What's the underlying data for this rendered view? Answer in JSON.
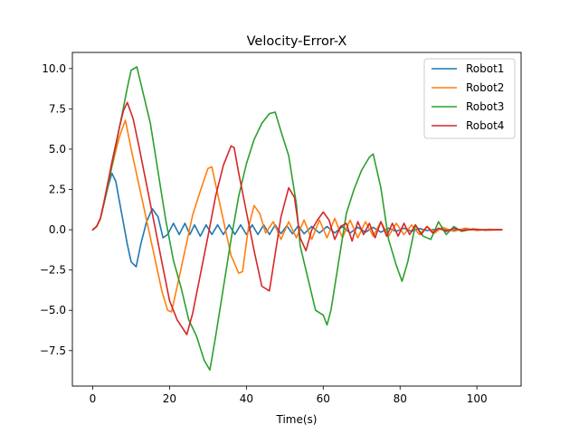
{
  "chart_data": {
    "type": "line",
    "title": "Velocity-Error-X",
    "xlabel": "Time(s)",
    "ylabel": "",
    "xlim": [
      -5.3,
      111.5
    ],
    "ylim": [
      -9.7,
      11.0
    ],
    "xticks": [
      0,
      20,
      40,
      60,
      80,
      100
    ],
    "yticks": [
      -7.5,
      -5.0,
      -2.5,
      0.0,
      2.5,
      5.0,
      7.5,
      10.0
    ],
    "ytick_labels": [
      "−7.5",
      "−5.0",
      "−2.5",
      "0.0",
      "2.5",
      "5.0",
      "7.5",
      "10.0"
    ],
    "grid": false,
    "legend_position": "top-right",
    "series": [
      {
        "name": "Robot1",
        "color": "#1f77b4",
        "x": [
          0,
          1,
          2,
          3,
          4,
          5,
          6,
          7,
          8,
          9,
          10,
          11.3,
          12.5,
          14,
          15.5,
          17,
          18.3,
          19.5,
          21,
          22.5,
          24,
          25.3,
          26.5,
          28,
          29.5,
          31,
          32.5,
          34,
          35.5,
          37,
          38.5,
          40,
          41.5,
          43,
          44.5,
          46,
          47.5,
          49,
          50.5,
          52,
          53.5,
          55,
          57,
          59,
          61,
          63,
          65,
          67,
          69,
          71,
          73,
          75,
          77,
          79,
          81,
          83,
          85,
          87,
          90,
          93,
          96,
          100,
          103,
          106.5
        ],
        "y": [
          0,
          0.2,
          0.7,
          1.7,
          2.7,
          3.5,
          3.0,
          1.7,
          0.4,
          -0.9,
          -2.0,
          -2.3,
          -0.9,
          0.5,
          1.3,
          0.8,
          -0.5,
          -0.3,
          0.4,
          -0.3,
          0.4,
          -0.3,
          0.3,
          -0.4,
          0.3,
          -0.3,
          0.3,
          -0.3,
          0.3,
          -0.3,
          0.3,
          -0.3,
          0.3,
          -0.3,
          0.3,
          -0.3,
          0.3,
          -0.25,
          0.25,
          -0.25,
          0.25,
          -0.25,
          0.2,
          -0.2,
          0.2,
          -0.2,
          0.2,
          -0.2,
          0.15,
          -0.15,
          0.15,
          -0.15,
          0.1,
          -0.1,
          0.1,
          -0.1,
          0.08,
          -0.05,
          0.05,
          -0.05,
          0.03,
          -0.02,
          0.02,
          0.0
        ]
      },
      {
        "name": "Robot2",
        "color": "#ff7f0e",
        "x": [
          0,
          1,
          2,
          3,
          4,
          5,
          6,
          7,
          8.5,
          10,
          12,
          14,
          16,
          18,
          19.5,
          20.5,
          22,
          24,
          26,
          28,
          30,
          31,
          32,
          34,
          36,
          38,
          39,
          40.5,
          42,
          43.5,
          45,
          47,
          49,
          51,
          53,
          55,
          57,
          59,
          61,
          63,
          65,
          67,
          69,
          71,
          73,
          75,
          77,
          79,
          81,
          83,
          85,
          87,
          89,
          91,
          94,
          97,
          100,
          103,
          106.5
        ],
        "y": [
          0,
          0.2,
          0.7,
          1.7,
          2.8,
          3.9,
          4.9,
          5.8,
          6.8,
          5.0,
          2.8,
          0.6,
          -1.6,
          -3.8,
          -5.0,
          -5.1,
          -3.5,
          -1.3,
          0.9,
          2.4,
          3.8,
          3.9,
          2.8,
          0.6,
          -1.6,
          -2.7,
          -2.6,
          0.1,
          1.5,
          1.0,
          -0.2,
          0.5,
          -0.6,
          0.5,
          -0.5,
          0.6,
          -0.6,
          0.6,
          -0.5,
          0.7,
          -0.5,
          0.6,
          -0.5,
          0.5,
          -0.4,
          0.5,
          -0.4,
          0.4,
          -0.3,
          0.3,
          -0.3,
          0.2,
          -0.2,
          0.15,
          -0.1,
          0.1,
          -0.05,
          0.03,
          0.0
        ]
      },
      {
        "name": "Robot3",
        "color": "#2ca02c",
        "x": [
          0,
          1,
          2,
          3,
          4,
          5,
          6,
          7,
          8,
          9,
          10,
          11.5,
          13,
          15,
          17,
          19,
          21,
          23,
          25,
          27,
          29,
          30.5,
          32,
          34,
          36,
          38,
          40,
          42,
          44,
          46,
          47.5,
          49,
          51,
          53,
          54,
          56,
          58,
          60,
          61,
          62,
          64,
          66,
          68,
          70,
          72,
          73,
          75,
          77,
          79,
          80.5,
          82,
          84,
          86,
          88,
          90,
          92,
          94,
          96,
          99,
          102,
          106.5
        ],
        "y": [
          0,
          0.2,
          0.7,
          1.7,
          2.8,
          4.0,
          5.2,
          6.4,
          7.6,
          8.8,
          9.9,
          10.1,
          8.6,
          6.6,
          3.6,
          0.6,
          -1.9,
          -3.6,
          -5.6,
          -6.6,
          -8.1,
          -8.7,
          -6.6,
          -3.6,
          -0.6,
          2.1,
          4.1,
          5.6,
          6.6,
          7.2,
          7.3,
          6.1,
          4.6,
          1.6,
          -1.0,
          -3.0,
          -5.0,
          -5.3,
          -5.9,
          -5.0,
          -2.0,
          1.0,
          2.5,
          3.7,
          4.5,
          4.7,
          2.6,
          -0.6,
          -2.2,
          -3.2,
          -2.0,
          0.3,
          -0.4,
          -0.6,
          0.5,
          -0.3,
          0.2,
          -0.1,
          0.05,
          -0.02,
          0.0
        ]
      },
      {
        "name": "Robot4",
        "color": "#d62728",
        "x": [
          0,
          1,
          2,
          3,
          4,
          5,
          6,
          7,
          8,
          9,
          10.5,
          12,
          14,
          16,
          18,
          20,
          22,
          24.5,
          26,
          28,
          30,
          32,
          34,
          36,
          36.8,
          38,
          40,
          42,
          44,
          46,
          47.5,
          49,
          51,
          52.5,
          54,
          55.5,
          57,
          58.5,
          60,
          61.5,
          63,
          64.5,
          66,
          67.5,
          69,
          70.5,
          72,
          73.5,
          75,
          76.5,
          78,
          79.5,
          81,
          82.5,
          84,
          85.5,
          87,
          88.5,
          90,
          92,
          94,
          96,
          99,
          102,
          106.5
        ],
        "y": [
          0,
          0.2,
          0.7,
          1.8,
          3.0,
          4.2,
          5.3,
          6.4,
          7.4,
          7.9,
          6.9,
          5.2,
          2.8,
          0.4,
          -2.0,
          -4.4,
          -5.6,
          -6.5,
          -5.2,
          -2.8,
          -0.4,
          2.1,
          4.0,
          5.2,
          5.1,
          3.5,
          1.1,
          -1.3,
          -3.5,
          -3.8,
          -1.5,
          0.8,
          2.6,
          2.0,
          -0.5,
          -1.3,
          0.0,
          0.6,
          1.1,
          0.6,
          -0.6,
          0.2,
          0.4,
          -0.7,
          0.5,
          -0.3,
          0.4,
          -0.5,
          0.5,
          -0.4,
          0.4,
          -0.4,
          0.4,
          -0.3,
          0.3,
          -0.3,
          0.2,
          -0.2,
          0.1,
          -0.1,
          0.1,
          -0.05,
          0.03,
          -0.02,
          0.0
        ]
      }
    ]
  }
}
